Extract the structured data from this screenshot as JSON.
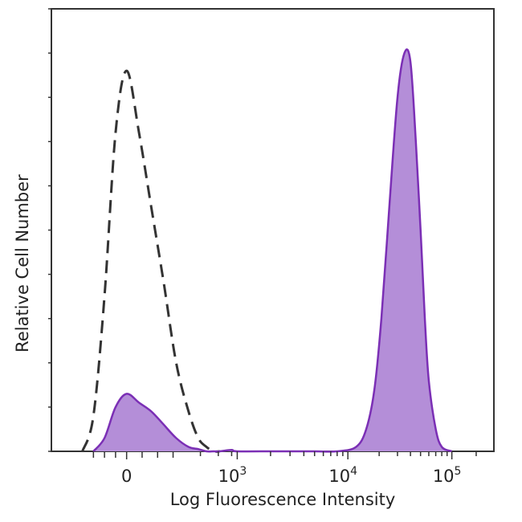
{
  "chart_data": {
    "type": "area",
    "title": "",
    "xlabel": "Log Fluorescence Intensity",
    "ylabel": "Relative Cell Number",
    "x_scale": "biexponential",
    "xlim": [
      -400,
      200000
    ],
    "ylim": [
      0,
      1.0
    ],
    "x_ticks": [
      {
        "value": 0,
        "base": "0",
        "exp": ""
      },
      {
        "value": 1000,
        "base": "10",
        "exp": "3"
      },
      {
        "value": 10000,
        "base": "10",
        "exp": "4"
      },
      {
        "value": 100000,
        "base": "10",
        "exp": "5"
      }
    ],
    "grid": false,
    "legend": "none",
    "series": [
      {
        "style": "dashed-outline",
        "color": "#333333",
        "x": [
          -400,
          -300,
          -200,
          -100,
          0,
          80,
          160,
          240,
          320,
          400,
          480,
          560,
          640,
          720
        ],
        "y": [
          0.0,
          0.08,
          0.35,
          0.72,
          0.86,
          0.72,
          0.55,
          0.38,
          0.2,
          0.09,
          0.03,
          0.01,
          0.0,
          0.0
        ]
      },
      {
        "style": "filled",
        "color": "#7b2fb5",
        "fill": "#b48ed8",
        "x": [
          -300,
          -200,
          -100,
          0,
          80,
          160,
          240,
          320,
          400,
          480,
          560,
          640,
          720,
          900,
          1000,
          2000,
          3000,
          5000,
          8000,
          12000,
          15000,
          18000,
          21000,
          25000,
          30000,
          35000,
          40000,
          45000,
          50000,
          55000,
          60000,
          70000,
          80000,
          100000
        ],
        "y": [
          0.0,
          0.03,
          0.1,
          0.13,
          0.11,
          0.09,
          0.06,
          0.03,
          0.01,
          0.005,
          0.0,
          0.0,
          0.0,
          0.003,
          0.0,
          0.0,
          0.0,
          0.0,
          0.0,
          0.01,
          0.05,
          0.14,
          0.3,
          0.55,
          0.8,
          0.9,
          0.88,
          0.7,
          0.5,
          0.3,
          0.16,
          0.05,
          0.01,
          0.0
        ]
      }
    ]
  }
}
